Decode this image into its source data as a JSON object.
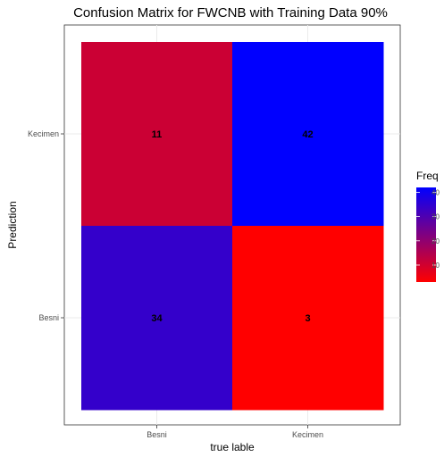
{
  "chart_data": {
    "type": "heatmap",
    "title": "Confusion Matrix for FWCNB with Training Data 90%",
    "xlabel": "true lable",
    "ylabel": "Prediction",
    "x_categories": [
      "Besni",
      "Kecimen"
    ],
    "y_categories": [
      "Besni",
      "Kecimen"
    ],
    "cells": [
      {
        "x": "Besni",
        "y": "Kecimen",
        "value": 11
      },
      {
        "x": "Kecimen",
        "y": "Kecimen",
        "value": 42
      },
      {
        "x": "Besni",
        "y": "Besni",
        "value": 34
      },
      {
        "x": "Kecimen",
        "y": "Besni",
        "value": 3
      }
    ],
    "legend": {
      "title": "Freq",
      "position": "right",
      "ticks": [
        "40",
        "30",
        "20",
        "10"
      ],
      "low_color": "#ff0000",
      "high_color": "#0000ff"
    },
    "grid": true
  }
}
